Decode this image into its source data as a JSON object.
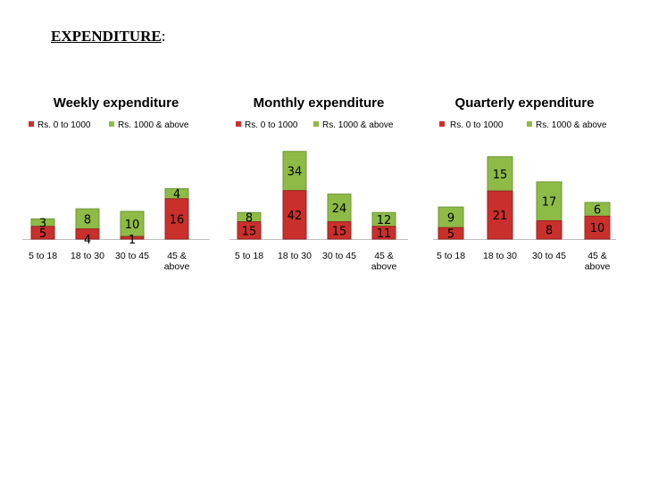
{
  "page": {
    "heading": "EXPENDITURE",
    "heading_suffix": ":"
  },
  "colors": {
    "series_low": "#c9302c",
    "series_low_edge": "#9b2220",
    "series_high": "#8dbb46",
    "series_high_edge": "#6f9638",
    "axis": "#bfbfbf"
  },
  "chart_data": [
    {
      "type": "bar",
      "stacked": true,
      "title": "Weekly expenditure",
      "categories": [
        [
          "5 to 18"
        ],
        [
          "18 to 30"
        ],
        [
          "30 to 45"
        ],
        [
          "45 &",
          "above"
        ]
      ],
      "series": [
        {
          "name": "Rs. 0 to 1000",
          "values": [
            5,
            4,
            1,
            16
          ]
        },
        {
          "name": "Rs. 1000 & above",
          "values": [
            3,
            8,
            10,
            4
          ]
        }
      ],
      "legend": "top",
      "ylim": [
        0,
        34
      ]
    },
    {
      "type": "bar",
      "stacked": true,
      "title": "Monthly expenditure",
      "categories": [
        [
          "5 to 18"
        ],
        [
          "18 to 30"
        ],
        [
          "30 to 45"
        ],
        [
          "45 &",
          "above"
        ]
      ],
      "series": [
        {
          "name": "Rs. 0 to 1000",
          "values": [
            15,
            42,
            15,
            11
          ]
        },
        {
          "name": "Rs. 1000 & above",
          "values": [
            8,
            34,
            24,
            12
          ]
        }
      ],
      "legend": "top",
      "ylim": [
        0,
        82
      ]
    },
    {
      "type": "bar",
      "stacked": true,
      "title": "Quarterly expenditure",
      "categories": [
        [
          "5 to 18"
        ],
        [
          "18 to 30"
        ],
        [
          "30 to 45"
        ],
        [
          "45 &",
          "above"
        ]
      ],
      "series": [
        {
          "name": "Rs. 0 to 1000",
          "values": [
            5,
            21,
            8,
            10
          ]
        },
        {
          "name": "Rs. 1000 & above",
          "values": [
            9,
            15,
            17,
            6
          ]
        }
      ],
      "legend": "top",
      "ylim": [
        0,
        39
      ]
    }
  ]
}
